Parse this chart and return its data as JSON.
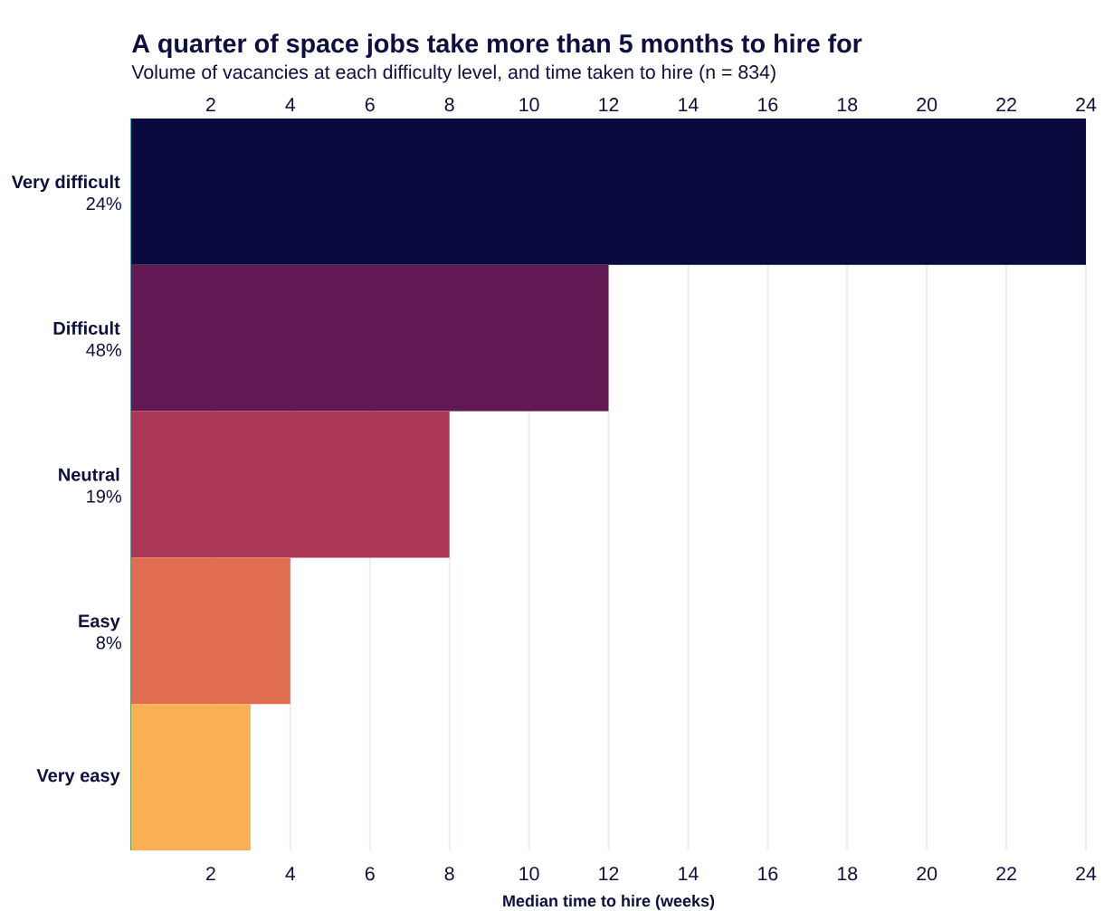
{
  "chart_data": {
    "type": "bar",
    "orientation": "horizontal",
    "title": "A quarter of space jobs take more than 5 months to hire for",
    "subtitle": "Volume of vacancies at each difficulty level, and time taken to hire (n = 834)",
    "xlabel": "Median time to hire (weeks)",
    "categories": [
      "Very difficult",
      "Difficult",
      "Neutral",
      "Easy",
      "Very easy"
    ],
    "values": [
      24,
      12,
      8,
      4,
      3
    ],
    "colors": [
      "#0a0a3e",
      "#621852",
      "#ac3656",
      "#e16d51",
      "#fbb055"
    ],
    "xlim": [
      0,
      24
    ],
    "xticks": [
      2,
      4,
      6,
      8,
      10,
      12,
      14,
      16,
      18,
      20,
      22,
      24
    ],
    "x2lim": [
      0,
      24
    ],
    "x2ticks": [
      2,
      4,
      6,
      8,
      10,
      12,
      14,
      16,
      18,
      20,
      22,
      24
    ],
    "grid": "x",
    "annotations": [
      "24%",
      "48%",
      "19%",
      "8%"
    ]
  }
}
